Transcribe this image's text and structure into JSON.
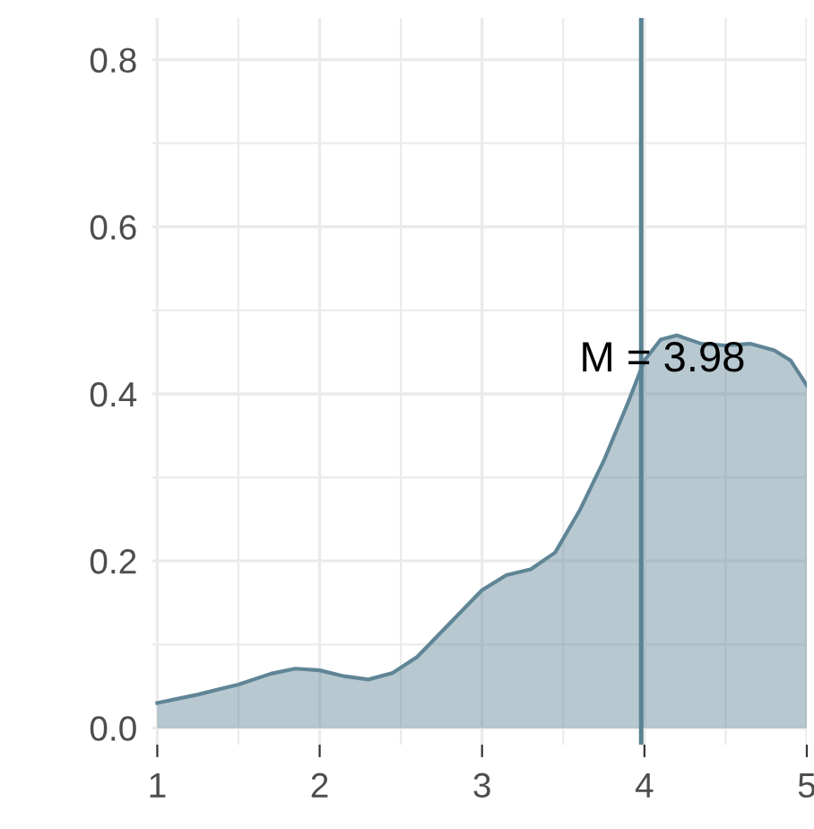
{
  "chart_data": {
    "type": "area",
    "x": [
      1,
      1.25,
      1.5,
      1.7,
      1.85,
      2,
      2.15,
      2.3,
      2.45,
      2.6,
      2.8,
      3,
      3.15,
      3.3,
      3.45,
      3.6,
      3.75,
      3.9,
      4,
      4.1,
      4.2,
      4.35,
      4.5,
      4.65,
      4.8,
      4.9,
      5
    ],
    "series": [
      {
        "color": "#5f8596",
        "values": [
          0.03,
          0.04,
          0.052,
          0.065,
          0.071,
          0.069,
          0.062,
          0.058,
          0.066,
          0.085,
          0.125,
          0.165,
          0.183,
          0.19,
          0.21,
          0.26,
          0.32,
          0.39,
          0.44,
          0.465,
          0.47,
          0.46,
          0.458,
          0.46,
          0.452,
          0.44,
          0.41
        ]
      }
    ],
    "xlim": [
      0.97,
      5
    ],
    "ylim": [
      -0.02,
      0.85
    ],
    "xticks": [
      1,
      2,
      3,
      4,
      5
    ],
    "yticks": [
      {
        "value": 0,
        "label": "0.0"
      },
      0.2,
      0.4,
      0.6,
      0.8
    ],
    "grid": true,
    "ref_lines": [
      {
        "axis": "x",
        "value": 3.98,
        "label": "M = 3.98",
        "color": "#5b8393"
      }
    ]
  }
}
